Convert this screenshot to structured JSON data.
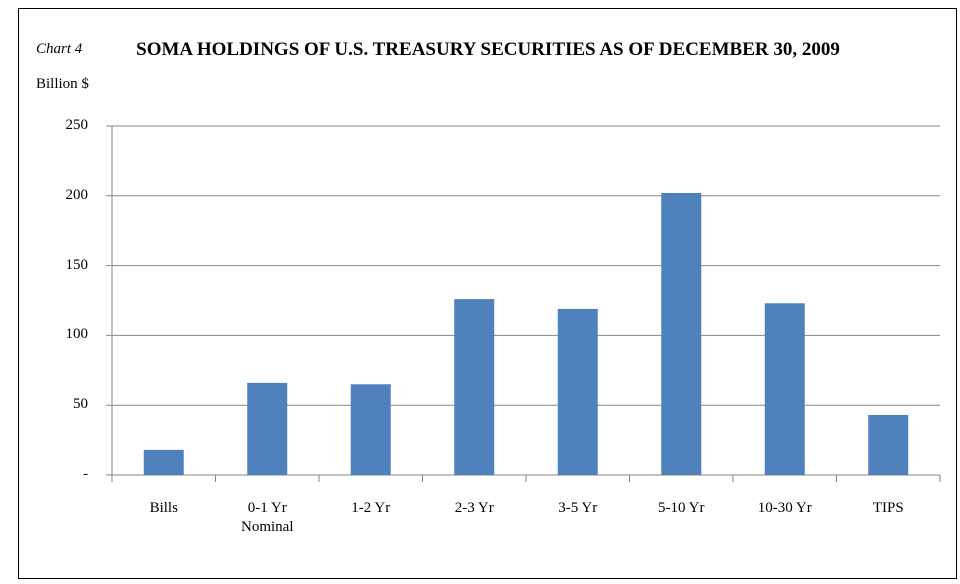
{
  "chart_data": {
    "type": "bar",
    "title": "SOMA HOLDINGS OF U.S. TREASURY SECURITIES AS OF DECEMBER 30, 2009",
    "chart_label": "Chart 4",
    "y_label": "Billion $",
    "categories": [
      "Bills",
      "0-1 Yr Nominal",
      "1-2 Yr",
      "2-3 Yr",
      "3-5 Yr",
      "5-10 Yr",
      "10-30 Yr",
      "TIPS"
    ],
    "values": [
      18,
      66,
      65,
      126,
      119,
      202,
      123,
      43
    ],
    "color": "#4f81bd",
    "ylim": [
      0,
      250
    ],
    "yticks": [
      {
        "value": 0,
        "label": "-"
      },
      50,
      100,
      150,
      200,
      250
    ],
    "grid": true
  }
}
